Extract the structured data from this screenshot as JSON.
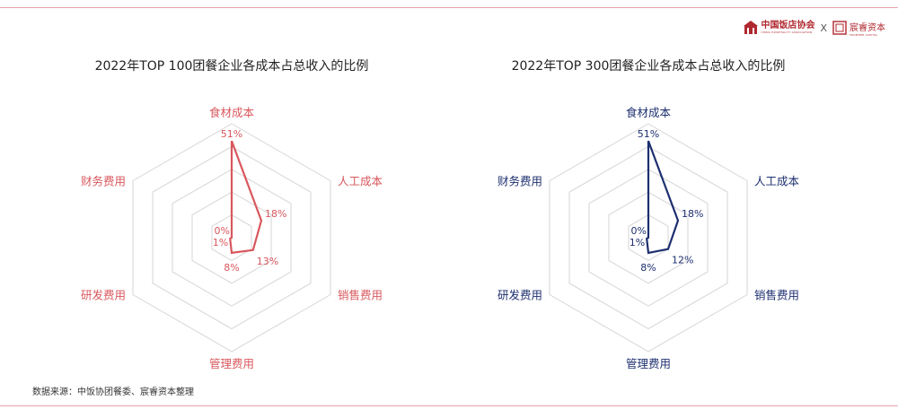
{
  "branding": {
    "logo_left_text": "中国饭店协会",
    "logo_left_sub": "CHINA HOSPITALITY ASSOCIATION",
    "separator": "X",
    "logo_right_text": "宸睿资本",
    "logo_right_sub": "FRONTIER CAPITAL"
  },
  "source_note": "数据来源：中饭协团餐委、宸睿资本整理",
  "chart_data": [
    {
      "type": "radar",
      "title": "2022年TOP 100团餐企业各成本占总收入的比例",
      "color": "#d9575d",
      "axes": [
        "食材成本",
        "人工成本",
        "销售费用",
        "管理费用",
        "研发费用",
        "财务费用"
      ],
      "values": [
        51,
        18,
        13,
        8,
        1,
        0
      ],
      "value_labels": [
        "51%",
        "18%",
        "13%",
        "8%",
        "1%",
        "0%"
      ],
      "rmax": 60,
      "rings": 5,
      "grid": true
    },
    {
      "type": "radar",
      "title": "2022年TOP 300团餐企业各成本占总收入的比例",
      "color": "#1d2f6f",
      "axes": [
        "食材成本",
        "人工成本",
        "销售费用",
        "管理费用",
        "研发费用",
        "财务费用"
      ],
      "values": [
        51,
        18,
        12,
        8,
        1,
        0
      ],
      "value_labels": [
        "51%",
        "18%",
        "12%",
        "8%",
        "1%",
        "0%"
      ],
      "rmax": 60,
      "rings": 5,
      "grid": true
    }
  ]
}
